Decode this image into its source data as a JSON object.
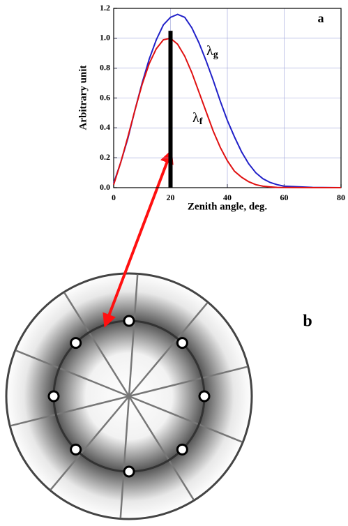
{
  "chart_data": {
    "type": "line",
    "panel_label": "a",
    "xlabel": "Zenith angle, deg.",
    "ylabel": "Arbitrary unit",
    "x": [
      0,
      2.5,
      5,
      7.5,
      10,
      12.5,
      15,
      17.5,
      20,
      22.5,
      25,
      27.5,
      30,
      32.5,
      35,
      37.5,
      40,
      42.5,
      45,
      47.5,
      50,
      52.5,
      55,
      57.5,
      60,
      70,
      80
    ],
    "series": [
      {
        "name": "λg",
        "color": "#2020c8",
        "values": [
          0.03,
          0.17,
          0.33,
          0.52,
          0.7,
          0.86,
          0.99,
          1.09,
          1.14,
          1.16,
          1.14,
          1.07,
          0.97,
          0.85,
          0.72,
          0.58,
          0.45,
          0.34,
          0.24,
          0.16,
          0.1,
          0.06,
          0.035,
          0.02,
          0.01,
          0.002,
          0
        ]
      },
      {
        "name": "λf",
        "color": "#e01010",
        "values": [
          0.02,
          0.17,
          0.34,
          0.52,
          0.69,
          0.83,
          0.93,
          0.99,
          1.0,
          0.96,
          0.88,
          0.77,
          0.64,
          0.51,
          0.38,
          0.27,
          0.18,
          0.11,
          0.07,
          0.04,
          0.02,
          0.01,
          0.005,
          0.002,
          0.001,
          0,
          0
        ]
      }
    ],
    "bar": {
      "x": 20,
      "top": 1.05,
      "color": "#000000"
    },
    "xlim": [
      0,
      80
    ],
    "xticks": [
      0,
      20,
      40,
      60,
      80
    ],
    "ylim": [
      0,
      1.2
    ],
    "yticks": [
      {
        "value": 0,
        "label": "0.0"
      },
      {
        "value": 0.2,
        "label": "0.2"
      },
      {
        "value": 0.4,
        "label": "0.4"
      },
      {
        "value": 0.6,
        "label": "0.6"
      },
      {
        "value": 0.8,
        "label": "0.8"
      },
      {
        "value": 1.0,
        "label": "1.0"
      },
      {
        "value": 1.2,
        "label": "1.2"
      }
    ],
    "grid": true
  },
  "diagram": {
    "label": "b"
  }
}
